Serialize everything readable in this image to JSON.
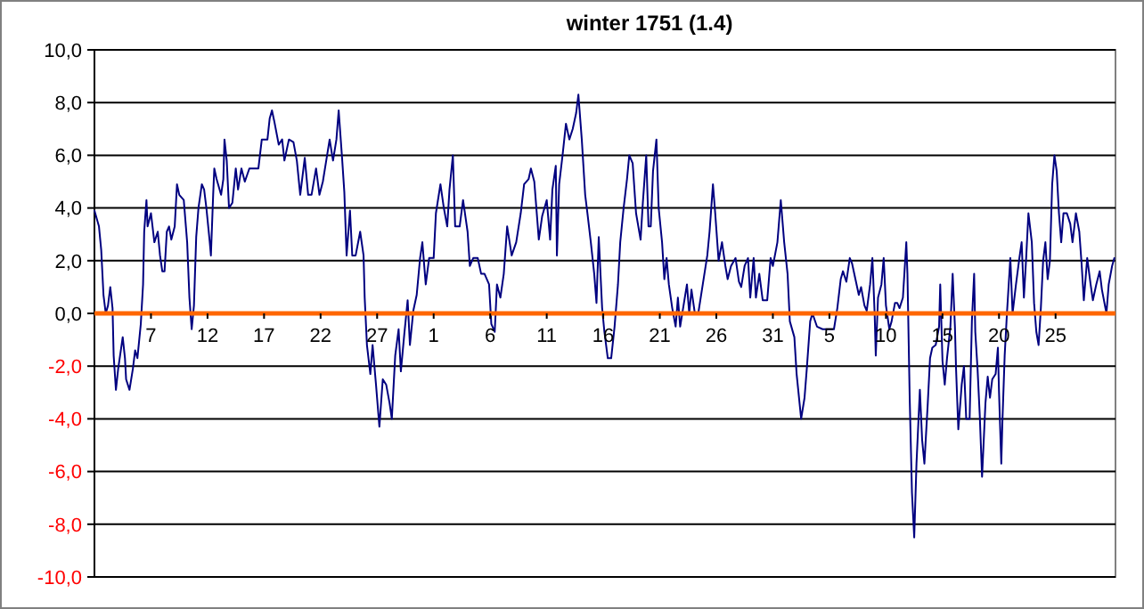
{
  "chart_data": {
    "type": "line",
    "title": "winter 1751 (1.4)",
    "xlim": [
      "1750-12-02T00:00",
      "1751-03-02T07:12"
    ],
    "xticks": [
      {
        "value": "1750-12-07",
        "label": "7"
      },
      {
        "value": "1750-12-12",
        "label": "12"
      },
      {
        "value": "1750-12-17",
        "label": "17"
      },
      {
        "value": "1750-12-22",
        "label": "22"
      },
      {
        "value": "1750-12-27",
        "label": "27"
      },
      {
        "value": "1751-01-01",
        "label": "1"
      },
      {
        "value": "1751-01-06",
        "label": "6"
      },
      {
        "value": "1751-01-11",
        "label": "11"
      },
      {
        "value": "1751-01-16",
        "label": "16"
      },
      {
        "value": "1751-01-21",
        "label": "21"
      },
      {
        "value": "1751-01-26",
        "label": "26"
      },
      {
        "value": "1751-01-31",
        "label": "31"
      },
      {
        "value": "1751-02-05",
        "label": "5"
      },
      {
        "value": "1751-02-10",
        "label": "10"
      },
      {
        "value": "1751-02-15",
        "label": "15"
      },
      {
        "value": "1751-02-20",
        "label": "20"
      },
      {
        "value": "1751-02-25",
        "label": "25"
      }
    ],
    "ylim": [
      -10,
      10
    ],
    "yticks": [
      {
        "value": -10,
        "label": "-10,0"
      },
      {
        "value": -8,
        "label": "-8,0"
      },
      {
        "value": -6,
        "label": "-6,0"
      },
      {
        "value": -4,
        "label": "-4,0"
      },
      {
        "value": -2,
        "label": "-2,0"
      },
      {
        "value": 0,
        "label": "0,0"
      },
      {
        "value": 2,
        "label": "2,0"
      },
      {
        "value": 4,
        "label": "4,0"
      },
      {
        "value": 6,
        "label": "6,0"
      },
      {
        "value": 8,
        "label": "8,0"
      },
      {
        "value": 10,
        "label": "10,0"
      }
    ],
    "grid": "y",
    "marker": "none",
    "line_style": "solid",
    "series": [
      {
        "color": "#000080",
        "x": [
          "1750-12-02T00:00",
          "1750-12-02T09:36",
          "1750-12-02T14:24",
          "1750-12-02T19:12",
          "1750-12-03T00:00",
          "1750-12-03T04:48",
          "1750-12-03T09:36",
          "1750-12-03T14:24",
          "1750-12-03T16:48",
          "1750-12-03T21:36",
          "1750-12-04T02:24",
          "1750-12-04T09:36",
          "1750-12-04T12:00",
          "1750-12-04T16:48",
          "1750-12-04T19:12",
          "1750-12-05T02:24",
          "1750-12-05T09:36",
          "1750-12-05T14:24",
          "1750-12-05T19:12",
          "1750-12-06T02:24",
          "1750-12-06T07:12",
          "1750-12-06T09:36",
          "1750-12-06T14:24",
          "1750-12-06T16:48",
          "1750-12-07T00:00",
          "1750-12-07T07:12",
          "1750-12-07T14:24",
          "1750-12-07T19:12",
          "1750-12-08T00:00",
          "1750-12-08T04:48",
          "1750-12-08T09:36",
          "1750-12-08T14:24",
          "1750-12-08T19:12",
          "1750-12-09T02:24",
          "1750-12-09T07:12",
          "1750-12-09T12:00",
          "1750-12-09T21:36",
          "1750-12-10T04:48",
          "1750-12-10T09:36",
          "1750-12-10T14:24",
          "1750-12-10T19:12",
          "1750-12-11T00:00",
          "1750-12-11T04:48",
          "1750-12-11T12:00",
          "1750-12-11T16:48",
          "1750-12-11T21:36",
          "1750-12-12T04:48",
          "1750-12-12T07:12",
          "1750-12-12T12:00",
          "1750-12-12T14:24",
          "1750-12-12T19:12",
          "1750-12-13T04:48",
          "1750-12-13T09:36",
          "1750-12-13T12:00",
          "1750-12-13T16:48",
          "1750-12-13T21:36",
          "1750-12-14T04:48",
          "1750-12-14T12:00",
          "1750-12-14T16:48",
          "1750-12-15T00:00",
          "1750-12-15T07:12",
          "1750-12-15T16:48",
          "1750-12-16T00:00",
          "1750-12-16T12:00",
          "1750-12-16T19:12",
          "1750-12-17T07:12",
          "1750-12-17T12:00",
          "1750-12-17T16:48",
          "1750-12-17T21:36",
          "1750-12-18T07:12",
          "1750-12-18T14:24",
          "1750-12-18T19:12",
          "1750-12-19T04:48",
          "1750-12-19T14:24",
          "1750-12-19T21:36",
          "1750-12-20T04:48",
          "1750-12-20T14:24",
          "1750-12-20T21:36",
          "1750-12-21T04:48",
          "1750-12-21T14:24",
          "1750-12-21T21:36",
          "1750-12-22T04:48",
          "1750-12-22T12:00",
          "1750-12-22T19:12",
          "1750-12-23T02:24",
          "1750-12-23T09:36",
          "1750-12-23T14:24",
          "1750-12-23T21:36",
          "1750-12-24T02:24",
          "1750-12-24T07:12",
          "1750-12-24T14:24",
          "1750-12-24T19:12",
          "1750-12-25T02:24",
          "1750-12-25T12:00",
          "1750-12-25T19:12",
          "1750-12-25T21:36",
          "1750-12-26T02:24",
          "1750-12-26T09:36",
          "1750-12-26T14:24",
          "1750-12-26T21:36",
          "1750-12-27T04:48",
          "1750-12-27T12:00",
          "1750-12-27T19:12",
          "1750-12-28T02:24",
          "1750-12-28T07:12",
          "1750-12-28T14:24",
          "1750-12-28T21:36",
          "1750-12-29T02:24",
          "1750-12-29T09:36",
          "1750-12-29T16:48",
          "1750-12-29T21:36",
          "1750-12-30T04:48",
          "1750-12-30T12:00",
          "1750-12-30T19:12",
          "1750-12-31T00:00",
          "1750-12-31T07:12",
          "1750-12-31T14:24",
          "1751-01-01T00:00",
          "1751-01-01T04:48",
          "1751-01-01T14:24",
          "1751-01-01T21:36",
          "1751-01-02T04:48",
          "1751-01-02T09:36",
          "1751-01-02T16:48",
          "1751-01-02T21:36",
          "1751-01-03T07:12",
          "1751-01-03T14:24",
          "1751-01-04T00:00",
          "1751-01-04T04:48",
          "1751-01-04T12:00",
          "1751-01-04T21:36",
          "1751-01-05T04:48",
          "1751-01-05T12:00",
          "1751-01-05T21:36",
          "1751-01-06T02:24",
          "1751-01-06T09:36",
          "1751-01-06T14:24",
          "1751-01-06T21:36",
          "1751-01-07T04:48",
          "1751-01-07T12:00",
          "1751-01-07T21:36",
          "1751-01-08T07:12",
          "1751-01-08T16:48",
          "1751-01-09T00:00",
          "1751-01-09T09:36",
          "1751-01-09T14:24",
          "1751-01-09T21:36",
          "1751-01-10T07:12",
          "1751-01-10T14:24",
          "1751-01-11T00:00",
          "1751-01-11T07:12",
          "1751-01-11T12:00",
          "1751-01-11T19:12",
          "1751-01-11T21:36",
          "1751-01-12T02:24",
          "1751-01-12T09:36",
          "1751-01-12T16:48",
          "1751-01-13T00:00",
          "1751-01-13T07:12",
          "1751-01-13T14:24",
          "1751-01-13T19:12",
          "1751-01-14T02:24",
          "1751-01-14T09:36",
          "1751-01-14T14:24",
          "1751-01-14T21:36",
          "1751-01-15T04:48",
          "1751-01-15T09:36",
          "1751-01-15T14:24",
          "1751-01-15T21:36",
          "1751-01-16T02:24",
          "1751-01-16T09:36",
          "1751-01-16T16:48",
          "1751-01-17T00:00",
          "1751-01-17T07:12",
          "1751-01-17T12:00",
          "1751-01-17T19:12",
          "1751-01-18T02:24",
          "1751-01-18T07:12",
          "1751-01-18T14:24",
          "1751-01-18T21:36",
          "1751-01-19T07:12",
          "1751-01-19T12:00",
          "1751-01-19T19:12",
          "1751-01-20T00:00",
          "1751-01-20T04:48",
          "1751-01-20T09:36",
          "1751-01-20T16:48",
          "1751-01-20T21:36",
          "1751-01-21T04:48",
          "1751-01-21T09:36",
          "1751-01-21T14:24",
          "1751-01-21T19:12",
          "1751-01-22T02:24",
          "1751-01-22T09:36",
          "1751-01-22T14:24",
          "1751-01-22T19:12",
          "1751-01-23T02:24",
          "1751-01-23T09:36",
          "1751-01-23T14:24",
          "1751-01-23T19:12",
          "1751-01-24T02:24",
          "1751-01-24T09:36",
          "1751-01-24T19:12",
          "1751-01-25T04:48",
          "1751-01-25T09:36",
          "1751-01-25T16:48",
          "1751-01-25T21:36",
          "1751-01-26T04:48",
          "1751-01-26T12:00",
          "1751-01-26T19:12",
          "1751-01-27T00:00",
          "1751-01-27T07:12",
          "1751-01-27T16:48",
          "1751-01-28T00:00",
          "1751-01-28T04:48",
          "1751-01-28T12:00",
          "1751-01-28T19:12",
          "1751-01-29T00:00",
          "1751-01-29T07:12",
          "1751-01-29T12:00",
          "1751-01-29T19:12",
          "1751-01-30T02:24",
          "1751-01-30T12:00",
          "1751-01-30T19:12",
          "1751-01-31T00:00",
          "1751-01-31T09:36",
          "1751-01-31T16:48",
          "1751-02-01T00:00",
          "1751-02-01T07:12",
          "1751-02-01T12:00",
          "1751-02-01T21:36",
          "1751-02-02T02:24",
          "1751-02-02T12:00",
          "1751-02-02T19:12",
          "1751-02-03T00:00",
          "1751-02-03T07:12",
          "1751-02-03T12:00",
          "1751-02-03T21:36",
          "1751-02-04T09:36",
          "1751-02-05T09:36",
          "1751-02-05T16:48",
          "1751-02-06T00:00",
          "1751-02-06T04:48",
          "1751-02-06T12:00",
          "1751-02-06T19:12",
          "1751-02-07T00:00",
          "1751-02-07T07:12",
          "1751-02-07T14:24",
          "1751-02-07T19:12",
          "1751-02-08T02:24",
          "1751-02-08T07:12",
          "1751-02-08T14:24",
          "1751-02-08T19:12",
          "1751-02-09T00:00",
          "1751-02-09T02:24",
          "1751-02-09T07:12",
          "1751-02-09T14:24",
          "1751-02-09T19:12",
          "1751-02-10T00:00",
          "1751-02-10T07:12",
          "1751-02-10T12:00",
          "1751-02-10T19:12",
          "1751-02-11T00:00",
          "1751-02-11T04:48",
          "1751-02-11T12:00",
          "1751-02-11T19:12",
          "1751-02-11T21:36",
          "1751-02-12T02:24",
          "1751-02-12T07:12",
          "1751-02-12T12:00",
          "1751-02-12T16:48",
          "1751-02-13T00:00",
          "1751-02-13T04:48",
          "1751-02-13T09:36",
          "1751-02-13T16:48",
          "1751-02-13T21:36",
          "1751-02-14T02:24",
          "1751-02-14T09:36",
          "1751-02-14T16:48",
          "1751-02-14T19:12",
          "1751-02-15T00:00",
          "1751-02-15T04:48",
          "1751-02-15T09:36",
          "1751-02-15T16:48",
          "1751-02-15T21:36",
          "1751-02-16T02:24",
          "1751-02-16T04:48",
          "1751-02-16T09:36",
          "1751-02-16T16:48",
          "1751-02-16T21:36",
          "1751-02-17T02:24",
          "1751-02-17T09:36",
          "1751-02-17T14:24",
          "1751-02-17T19:12",
          "1751-02-17T21:36",
          "1751-02-18T02:24",
          "1751-02-18T07:12",
          "1751-02-18T12:00",
          "1751-02-18T19:12",
          "1751-02-19T00:00",
          "1751-02-19T04:48",
          "1751-02-19T09:36",
          "1751-02-19T16:48",
          "1751-02-19T21:36",
          "1751-02-20T00:00",
          "1751-02-20T04:48",
          "1751-02-20T07:12",
          "1751-02-20T12:00",
          "1751-02-20T16:48",
          "1751-02-21T00:00",
          "1751-02-21T04:48",
          "1751-02-21T12:00",
          "1751-02-21T19:12",
          "1751-02-22T00:00",
          "1751-02-22T04:48",
          "1751-02-22T09:36",
          "1751-02-22T14:24",
          "1751-02-22T21:36",
          "1751-02-23T02:24",
          "1751-02-23T07:12",
          "1751-02-23T12:00",
          "1751-02-23T16:48",
          "1751-02-23T21:36",
          "1751-02-24T02:24",
          "1751-02-24T07:12",
          "1751-02-24T12:00",
          "1751-02-24T16:48",
          "1751-02-24T21:36",
          "1751-02-25T02:24",
          "1751-02-25T07:12",
          "1751-02-25T12:00",
          "1751-02-25T16:48",
          "1751-02-26T00:00",
          "1751-02-26T07:12",
          "1751-02-26T12:00",
          "1751-02-26T19:12",
          "1751-02-27T02:24",
          "1751-02-27T07:12",
          "1751-02-27T12:00",
          "1751-02-27T19:12",
          "1751-02-28T02:24",
          "1751-02-28T07:12",
          "1751-02-28T14:24",
          "1751-02-28T21:36",
          "1751-03-01T02:24",
          "1751-03-01T12:00",
          "1751-03-01T16:48",
          "1751-03-02T00:00",
          "1751-03-02T04:48"
        ],
        "values": [
          3.9,
          3.3,
          2.4,
          0.7,
          0,
          0.3,
          1.0,
          0.2,
          -1.6,
          -2.9,
          -2.1,
          -1.2,
          -0.9,
          -1.7,
          -2.5,
          -2.9,
          -2.1,
          -1.4,
          -1.7,
          -0.4,
          1.1,
          3.1,
          4.3,
          3.3,
          3.8,
          2.7,
          3.1,
          2.2,
          1.6,
          1.6,
          3.1,
          3.3,
          2.8,
          3.3,
          4.9,
          4.5,
          4.3,
          2.7,
          0.6,
          -0.6,
          0.3,
          2.9,
          4.0,
          4.9,
          4.7,
          4.0,
          2.7,
          2.2,
          4.5,
          5.5,
          5.1,
          4.5,
          5.1,
          6.6,
          5.8,
          4.0,
          4.2,
          5.5,
          4.7,
          5.5,
          5.0,
          5.5,
          5.5,
          5.5,
          6.6,
          6.6,
          7.4,
          7.7,
          7.3,
          6.4,
          6.6,
          5.8,
          6.6,
          6.5,
          5.8,
          4.5,
          5.9,
          4.5,
          4.5,
          5.5,
          4.5,
          5.0,
          5.8,
          6.6,
          5.8,
          6.6,
          7.7,
          5.9,
          4.6,
          2.2,
          3.9,
          2.2,
          2.2,
          3.1,
          2.2,
          0.6,
          -1.2,
          -2.3,
          -1.2,
          -2.7,
          -4.3,
          -2.5,
          -2.7,
          -3.4,
          -4.0,
          -1.6,
          -0.6,
          -2.2,
          -0.8,
          0.5,
          -1.2,
          0.1,
          0.7,
          2.1,
          2.7,
          1.1,
          2.1,
          2.1,
          3.8,
          4.9,
          4.0,
          3.3,
          4.7,
          6.0,
          3.3,
          3.3,
          4.3,
          3.1,
          1.8,
          2.1,
          2.1,
          1.5,
          1.5,
          1.1,
          -0.4,
          -0.7,
          1.1,
          0.6,
          1.5,
          3.3,
          2.2,
          2.7,
          3.8,
          4.9,
          5.1,
          5.5,
          5.0,
          2.8,
          3.7,
          4.3,
          2.8,
          4.7,
          5.6,
          2.2,
          4.9,
          6.0,
          7.2,
          6.6,
          7.0,
          7.6,
          8.3,
          6.6,
          4.5,
          3.8,
          2.7,
          1.5,
          0.4,
          2.9,
          0.2,
          -0.7,
          -1.7,
          -1.7,
          -0.5,
          1.1,
          2.7,
          4.0,
          5.1,
          6.0,
          5.7,
          3.8,
          2.8,
          4.2,
          6.0,
          3.3,
          3.3,
          5.4,
          6.6,
          4.0,
          2.7,
          1.3,
          2.1,
          1.1,
          0.2,
          -0.5,
          0.6,
          -0.5,
          0.3,
          1.1,
          0,
          0.9,
          0,
          0,
          1.1,
          2.2,
          3.1,
          4.9,
          3.8,
          2.0,
          2.7,
          1.8,
          1.3,
          1.8,
          2.1,
          1.2,
          1.0,
          1.8,
          2.1,
          0.6,
          2.1,
          0.6,
          1.5,
          0.5,
          0.5,
          2.1,
          1.8,
          2.7,
          4.3,
          2.7,
          1.5,
          -0.3,
          -0.9,
          -2.3,
          -4.0,
          -3.2,
          -2.1,
          -0.3,
          0,
          -0.5,
          -0.6,
          -0.6,
          0.2,
          1.3,
          1.6,
          1.2,
          2.1,
          1.9,
          1.3,
          0.7,
          1.0,
          0.3,
          0.1,
          1.1,
          2.1,
          0,
          -1.6,
          0.6,
          1.1,
          2.1,
          0.3,
          -0.6,
          -0.3,
          0.4,
          0.4,
          0.2,
          0.6,
          2.7,
          1.5,
          -3.2,
          -6.8,
          -8.5,
          -5.7,
          -2.9,
          -4.8,
          -5.7,
          -3.4,
          -1.7,
          -1.3,
          -1.2,
          -0.5,
          1.1,
          -1.8,
          -2.7,
          -1.7,
          -0.5,
          1.5,
          -0.5,
          -2.1,
          -4.4,
          -2.7,
          -2.0,
          -4.0,
          -4.0,
          -0.3,
          1.5,
          -0.7,
          -2.1,
          -3.9,
          -6.2,
          -3.4,
          -2.4,
          -3.2,
          -2.5,
          -2.3,
          -1.3,
          -3.0,
          -5.7,
          -4.1,
          -1.6,
          0,
          2.1,
          0,
          1.1,
          2.1,
          2.7,
          0.6,
          2.1,
          3.8,
          2.7,
          0.4,
          -0.7,
          -1.2,
          0.2,
          2.0,
          2.7,
          1.3,
          2.0,
          4.9,
          6.0,
          5.4,
          3.8,
          2.7,
          3.8,
          3.8,
          3.4,
          2.7,
          3.8,
          3.1,
          1.9,
          0.5,
          2.1,
          1.1,
          0.5,
          1.1,
          1.6,
          0.9,
          0,
          1.1,
          1.8,
          2.1
        ]
      }
    ]
  }
}
